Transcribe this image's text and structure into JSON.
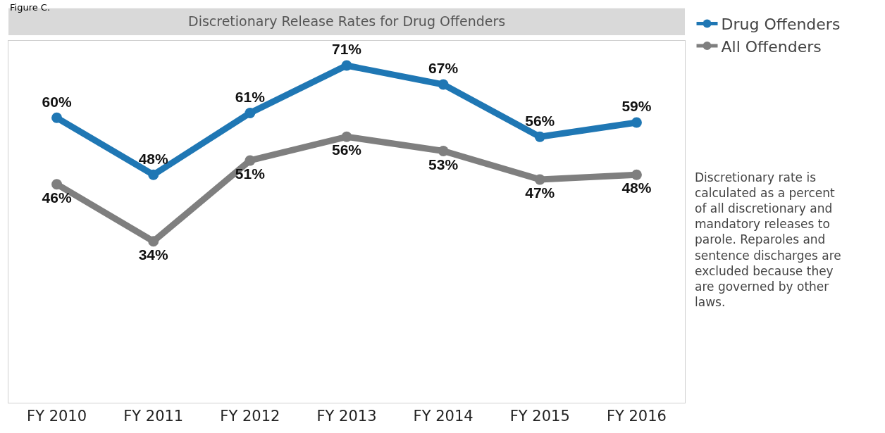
{
  "chart_data": {
    "type": "line",
    "title": "Discretionary Release Rates for Drug Offenders",
    "categories": [
      "FY 2010",
      "FY 2011",
      "FY 2012",
      "FY 2013",
      "FY 2014",
      "FY 2015",
      "FY 2016"
    ],
    "series": [
      {
        "name": "Drug Offenders",
        "color": "#1f77b4",
        "values": [
          60,
          48,
          61,
          71,
          67,
          56,
          59
        ],
        "value_labels": [
          "60%",
          "48%",
          "61%",
          "71%",
          "67%",
          "56%",
          "59%"
        ]
      },
      {
        "name": "All Offenders",
        "color": "#7f7f7f",
        "values": [
          46,
          34,
          51,
          56,
          53,
          47,
          48
        ],
        "value_labels": [
          "46%",
          "34%",
          "51%",
          "56%",
          "53%",
          "47%",
          "48%"
        ]
      }
    ],
    "legend": "top right",
    "marker": "circle",
    "line_style": "solid",
    "annotations": [
      "Figure C.",
      "Discretionary rate is calculated as a percent of all discretionary and mandatory releases to parole. Reparoles and sentence discharges are excluded because they are governed by other laws."
    ]
  }
}
